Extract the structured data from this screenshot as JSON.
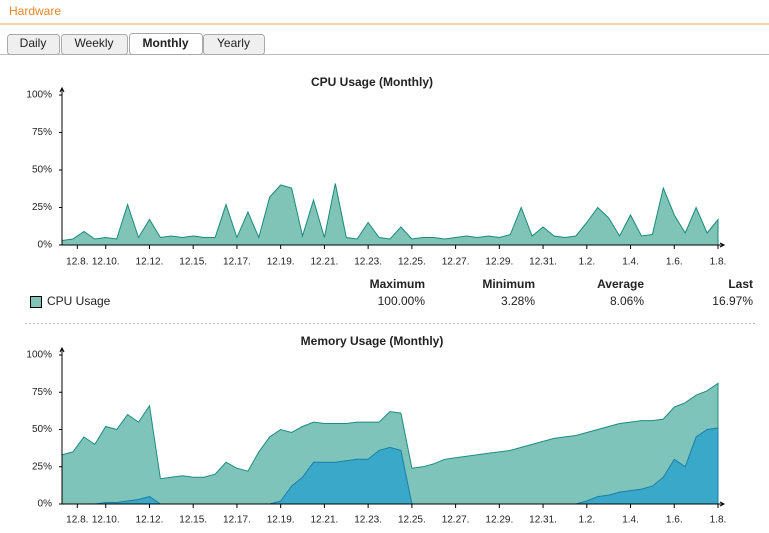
{
  "header": {
    "title": "Hardware"
  },
  "tabs": [
    "Daily",
    "Weekly",
    "Monthly",
    "Yearly"
  ],
  "active_tab": 2,
  "chart_data": [
    {
      "type": "area",
      "title": "CPU Usage (Monthly)",
      "x": [
        0,
        0.5,
        1,
        1.5,
        2,
        2.5,
        3,
        3.5,
        4,
        4.5,
        5,
        5.5,
        6,
        6.5,
        7,
        7.5,
        8,
        8.5,
        9,
        9.5,
        10,
        10.5,
        11,
        11.5,
        12,
        12.5,
        13,
        13.5,
        14,
        14.5,
        15,
        15.5,
        16,
        16.5,
        17,
        17.5,
        18,
        18.5,
        19,
        19.5,
        20,
        20.5,
        21,
        21.5,
        22,
        22.5,
        23,
        23.5,
        24,
        24.5,
        25,
        25.5,
        26,
        26.5,
        27,
        27.5,
        28,
        28.5,
        29,
        29.5,
        30
      ],
      "series": [
        {
          "name": "CPU Usage",
          "color": "#1a8a7a",
          "fill": "#80c4b8",
          "values": [
            3,
            4,
            9,
            4,
            5,
            4,
            27,
            5,
            17,
            5,
            6,
            5,
            6,
            5,
            5,
            27,
            5,
            22,
            5,
            32,
            40,
            38,
            6,
            30,
            5,
            41,
            5,
            4,
            15,
            5,
            4,
            12,
            4,
            5,
            5,
            4,
            5,
            6,
            5,
            6,
            5,
            7,
            25,
            6,
            12,
            6,
            5,
            6,
            15,
            25,
            18,
            6,
            20,
            6,
            7,
            38,
            20,
            8,
            25,
            8,
            17
          ]
        }
      ],
      "xlim": [
        0,
        30
      ],
      "xticks": [
        {
          "value": 0.7,
          "label": "12.8."
        },
        {
          "value": 2,
          "label": "12.10."
        },
        {
          "value": 4,
          "label": "12.12."
        },
        {
          "value": 6,
          "label": "12.15."
        },
        {
          "value": 8,
          "label": "12.17."
        },
        {
          "value": 10,
          "label": "12.19."
        },
        {
          "value": 12,
          "label": "12.21."
        },
        {
          "value": 14,
          "label": "12.23."
        },
        {
          "value": 16,
          "label": "12.25."
        },
        {
          "value": 18,
          "label": "12.27."
        },
        {
          "value": 20,
          "label": "12.29."
        },
        {
          "value": 22,
          "label": "12.31."
        },
        {
          "value": 24,
          "label": "1.2."
        },
        {
          "value": 26,
          "label": "1.4."
        },
        {
          "value": 28,
          "label": "1.6."
        },
        {
          "value": 30,
          "label": "1.8."
        }
      ],
      "ylim": [
        0,
        100
      ],
      "yticks": [
        {
          "value": 0,
          "label": "0%"
        },
        {
          "value": 25,
          "label": "25%"
        },
        {
          "value": 50,
          "label": "50%"
        },
        {
          "value": 75,
          "label": "75%"
        },
        {
          "value": 100,
          "label": "100%"
        }
      ]
    },
    {
      "type": "area",
      "title": "Memory Usage (Monthly)",
      "x": [
        0,
        0.5,
        1,
        1.5,
        2,
        2.5,
        3,
        3.5,
        4,
        4.5,
        5,
        5.5,
        6,
        6.5,
        7,
        7.5,
        8,
        8.5,
        9,
        9.5,
        10,
        10.5,
        11,
        11.5,
        12,
        12.5,
        13,
        13.5,
        14,
        14.5,
        15,
        15.5,
        16,
        16.5,
        17,
        17.5,
        18,
        18.5,
        19,
        19.5,
        20,
        20.5,
        21,
        21.5,
        22,
        22.5,
        23,
        23.5,
        24,
        24.5,
        25,
        25.5,
        26,
        26.5,
        27,
        27.5,
        28,
        28.5,
        29,
        29.5,
        30
      ],
      "series": [
        {
          "color": "#1f8c7f",
          "fill": "#7fc4ba",
          "values": [
            33,
            35,
            45,
            40,
            52,
            50,
            60,
            55,
            66,
            17,
            18,
            19,
            18,
            18,
            20,
            28,
            24,
            22,
            35,
            45,
            50,
            48,
            52,
            55,
            54,
            54,
            54,
            55,
            55,
            55,
            62,
            61,
            24,
            25,
            27,
            30,
            31,
            32,
            33,
            34,
            35,
            36,
            38,
            40,
            42,
            44,
            45,
            46,
            48,
            50,
            52,
            54,
            55,
            56,
            56,
            57,
            65,
            68,
            73,
            76,
            81
          ]
        },
        {
          "color": "#1a7fa8",
          "fill": "#3aa8c8",
          "values": [
            0,
            0,
            0,
            0,
            1,
            1,
            2,
            3,
            5,
            0,
            0,
            0,
            0,
            0,
            0,
            0,
            0,
            0,
            0,
            0,
            2,
            12,
            18,
            28,
            28,
            28,
            29,
            30,
            30,
            36,
            38,
            36,
            0,
            0,
            0,
            0,
            0,
            0,
            0,
            0,
            0,
            0,
            0,
            0,
            0,
            0,
            0,
            0,
            2,
            5,
            6,
            8,
            9,
            10,
            12,
            18,
            30,
            25,
            45,
            50,
            51
          ]
        }
      ],
      "xlim": [
        0,
        30
      ],
      "xticks": [
        {
          "value": 0.7,
          "label": "12.8."
        },
        {
          "value": 2,
          "label": "12.10."
        },
        {
          "value": 4,
          "label": "12.12."
        },
        {
          "value": 6,
          "label": "12.15."
        },
        {
          "value": 8,
          "label": "12.17."
        },
        {
          "value": 10,
          "label": "12.19."
        },
        {
          "value": 12,
          "label": "12.21."
        },
        {
          "value": 14,
          "label": "12.23."
        },
        {
          "value": 16,
          "label": "12.25."
        },
        {
          "value": 18,
          "label": "12.27."
        },
        {
          "value": 20,
          "label": "12.29."
        },
        {
          "value": 22,
          "label": "12.31."
        },
        {
          "value": 24,
          "label": "1.2."
        },
        {
          "value": 26,
          "label": "1.4."
        },
        {
          "value": 28,
          "label": "1.6."
        },
        {
          "value": 30,
          "label": "1.8."
        }
      ],
      "ylim": [
        0,
        100
      ],
      "yticks": [
        {
          "value": 0,
          "label": "0%"
        },
        {
          "value": 25,
          "label": "25%"
        },
        {
          "value": 50,
          "label": "50%"
        },
        {
          "value": 75,
          "label": "75%"
        },
        {
          "value": 100,
          "label": "100%"
        }
      ]
    }
  ],
  "legend_table": {
    "headers": [
      "Maximum",
      "Minimum",
      "Average",
      "Last"
    ],
    "rows": [
      {
        "label": "CPU Usage",
        "values": [
          "100.00%",
          "3.28%",
          "8.06%",
          "16.97%"
        ]
      }
    ]
  }
}
